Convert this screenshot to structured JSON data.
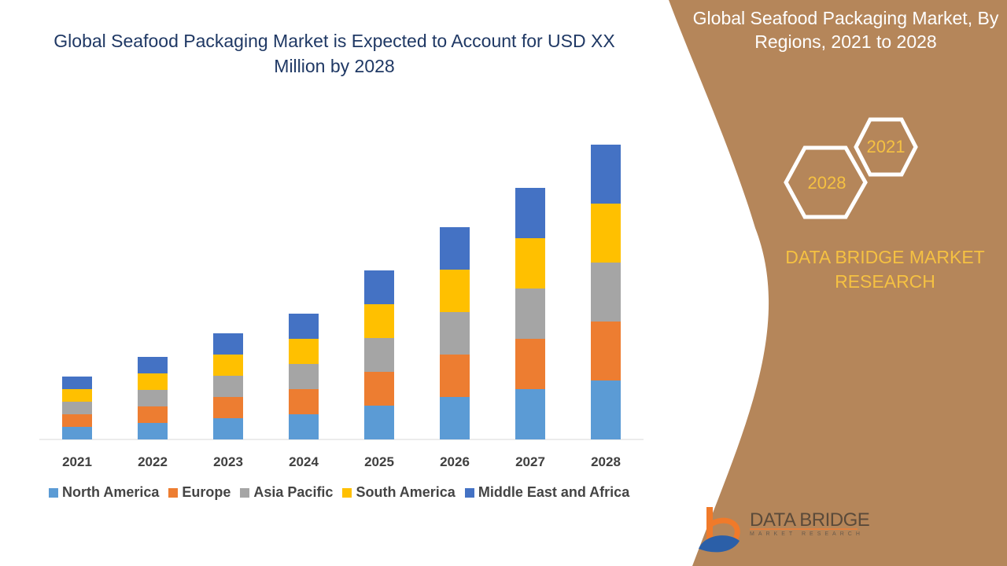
{
  "title": "Global Seafood Packaging Market is Expected to Account for USD XX Million by 2028",
  "side_panel": {
    "title": "Global Seafood Packaging Market, By Regions, 2021 to 2028",
    "hex_years": [
      "2021",
      "2028"
    ],
    "brand": "DATA BRIDGE MARKET RESEARCH",
    "logo_text": "DATA BRIDGE",
    "logo_sub": "MARKET RESEARCH",
    "panel_color": "#b5865a"
  },
  "chart_data": {
    "type": "bar",
    "stacked": true,
    "categories": [
      "2021",
      "2022",
      "2023",
      "2024",
      "2025",
      "2026",
      "2027",
      "2028"
    ],
    "series": [
      {
        "name": "North America",
        "color": "#5b9bd5",
        "values": [
          1.6,
          2.1,
          2.7,
          3.2,
          4.3,
          5.4,
          6.4,
          7.5
        ]
      },
      {
        "name": "Europe",
        "color": "#ed7d31",
        "values": [
          1.6,
          2.1,
          2.7,
          3.2,
          4.3,
          5.4,
          6.4,
          7.5
        ]
      },
      {
        "name": "Asia Pacific",
        "color": "#a5a5a5",
        "values": [
          1.6,
          2.1,
          2.7,
          3.2,
          4.3,
          5.4,
          6.4,
          7.5
        ]
      },
      {
        "name": "South America",
        "color": "#ffc000",
        "values": [
          1.6,
          2.1,
          2.7,
          3.2,
          4.3,
          5.4,
          6.4,
          7.5
        ]
      },
      {
        "name": "Middle East and Africa",
        "color": "#4472c4",
        "values": [
          1.6,
          2.1,
          2.7,
          3.2,
          4.3,
          5.4,
          6.4,
          7.5
        ]
      }
    ],
    "ylim": [
      0,
      37.5
    ],
    "grid": false,
    "y_axis_visible": false,
    "legend": "bottom"
  }
}
